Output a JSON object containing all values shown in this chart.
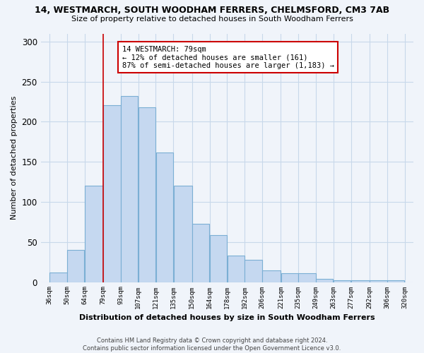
{
  "title1": "14, WESTMARCH, SOUTH WOODHAM FERRERS, CHELMSFORD, CM3 7AB",
  "title2": "Size of property relative to detached houses in South Woodham Ferrers",
  "xlabel": "Distribution of detached houses by size in South Woodham Ferrers",
  "ylabel": "Number of detached properties",
  "footnote": "Contains HM Land Registry data © Crown copyright and database right 2024.\nContains public sector information licensed under the Open Government Licence v3.0.",
  "bar_left_edges": [
    36,
    50,
    64,
    79,
    93,
    107,
    121,
    135,
    150,
    164,
    178,
    192,
    206,
    221,
    235,
    249,
    263,
    277,
    292,
    306
  ],
  "bar_widths": [
    14,
    14,
    15,
    14,
    14,
    14,
    14,
    15,
    14,
    14,
    14,
    14,
    15,
    14,
    14,
    14,
    14,
    15,
    14,
    14
  ],
  "bar_heights": [
    12,
    40,
    120,
    221,
    232,
    218,
    162,
    120,
    73,
    59,
    33,
    28,
    15,
    11,
    11,
    4,
    2,
    2,
    2,
    2
  ],
  "tick_labels": [
    "36sqm",
    "50sqm",
    "64sqm",
    "79sqm",
    "93sqm",
    "107sqm",
    "121sqm",
    "135sqm",
    "150sqm",
    "164sqm",
    "178sqm",
    "192sqm",
    "206sqm",
    "221sqm",
    "235sqm",
    "249sqm",
    "263sqm",
    "277sqm",
    "292sqm",
    "306sqm",
    "320sqm"
  ],
  "tick_positions": [
    36,
    50,
    64,
    79,
    93,
    107,
    121,
    135,
    150,
    164,
    178,
    192,
    206,
    221,
    235,
    249,
    263,
    277,
    292,
    306,
    320
  ],
  "bar_color": "#c5d8f0",
  "bar_edge_color": "#7bafd4",
  "vline_x": 79,
  "vline_color": "#cc0000",
  "annotation_title": "14 WESTMARCH: 79sqm",
  "annotation_line1": "← 12% of detached houses are smaller (161)",
  "annotation_line2": "87% of semi-detached houses are larger (1,183) →",
  "annotation_box_color": "#ffffff",
  "annotation_box_edge": "#cc0000",
  "ylim": [
    0,
    310
  ],
  "xlim": [
    29,
    327
  ],
  "yticks": [
    0,
    50,
    100,
    150,
    200,
    250,
    300
  ],
  "bg_color": "#f0f4fa",
  "grid_color": "#c8d8ea"
}
